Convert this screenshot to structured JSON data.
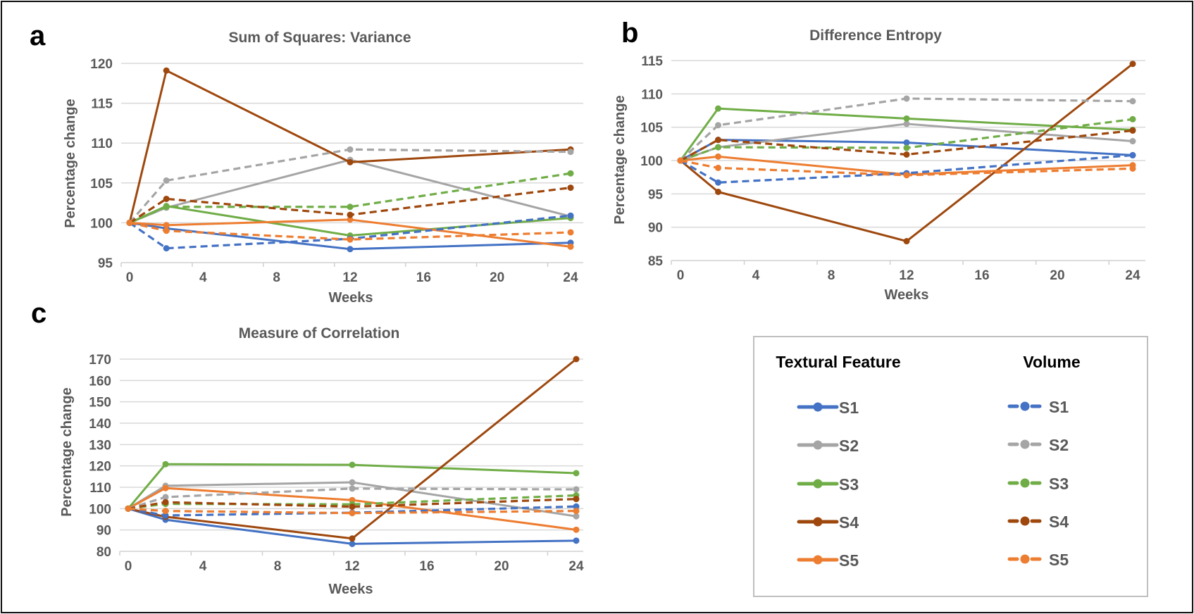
{
  "colors": {
    "S1": "#4472c4",
    "S2": "#a5a5a5",
    "S3": "#70ad47",
    "S4": "#9e480e",
    "S5": "#ed7d31"
  },
  "legend": {
    "textural_header": "Textural Feature",
    "volume_header": "Volume",
    "textural_items": [
      "S1",
      "S2",
      "S3",
      "S4",
      "S5"
    ],
    "volume_items": [
      "S1",
      "S2",
      "S3",
      "S4",
      "S5"
    ]
  },
  "chart_data": [
    {
      "panel": "a",
      "type": "line",
      "title": "Sum of Squares: Variance",
      "xlabel": "Weeks",
      "ylabel": "Percentage change",
      "x": [
        0,
        2,
        12,
        24
      ],
      "xlim": [
        0,
        24
      ],
      "xticks": [
        0,
        4,
        8,
        12,
        16,
        20,
        24
      ],
      "ylim": [
        95,
        120
      ],
      "yticks": [
        95,
        100,
        105,
        110,
        115,
        120
      ],
      "grid": true,
      "series": [
        {
          "name": "Textural Feature S1",
          "key": "S1",
          "style": "solid",
          "values": [
            100,
            99.3,
            96.7,
            97.5
          ]
        },
        {
          "name": "Textural Feature S2",
          "key": "S2",
          "style": "solid",
          "values": [
            100,
            101.9,
            107.9,
            100.8
          ]
        },
        {
          "name": "Textural Feature S3",
          "key": "S3",
          "style": "solid",
          "values": [
            100,
            102.1,
            98.4,
            100.6
          ]
        },
        {
          "name": "Textural Feature S4",
          "key": "S4",
          "style": "solid",
          "values": [
            100,
            119.1,
            107.6,
            109.2
          ]
        },
        {
          "name": "Textural Feature S5",
          "key": "S5",
          "style": "solid",
          "values": [
            100,
            99.7,
            100.4,
            97.0
          ]
        },
        {
          "name": "Volume S1",
          "key": "S1",
          "style": "dashed",
          "values": [
            100,
            96.8,
            98.0,
            100.9
          ]
        },
        {
          "name": "Volume S2",
          "key": "S2",
          "style": "dashed",
          "values": [
            100,
            105.3,
            109.2,
            108.9
          ]
        },
        {
          "name": "Volume S3",
          "key": "S3",
          "style": "dashed",
          "values": [
            100,
            102.0,
            102.0,
            106.2
          ]
        },
        {
          "name": "Volume S4",
          "key": "S4",
          "style": "dashed",
          "values": [
            100,
            103.0,
            101.0,
            104.4
          ]
        },
        {
          "name": "Volume S5",
          "key": "S5",
          "style": "dashed",
          "values": [
            100,
            99.0,
            97.9,
            98.8
          ]
        }
      ]
    },
    {
      "panel": "b",
      "type": "line",
      "title": "Difference Entropy",
      "xlabel": "Weeks",
      "ylabel": "Percentage change",
      "x": [
        0,
        2,
        12,
        24
      ],
      "xlim": [
        0,
        24
      ],
      "xticks": [
        0,
        4,
        8,
        12,
        16,
        20,
        24
      ],
      "ylim": [
        85,
        115
      ],
      "yticks": [
        85,
        90,
        95,
        100,
        105,
        110,
        115
      ],
      "grid": true,
      "series": [
        {
          "name": "Textural Feature S1",
          "key": "S1",
          "style": "solid",
          "values": [
            100,
            103.1,
            102.7,
            100.8
          ]
        },
        {
          "name": "Textural Feature S2",
          "key": "S2",
          "style": "solid",
          "values": [
            100,
            102.0,
            105.5,
            102.9
          ]
        },
        {
          "name": "Textural Feature S3",
          "key": "S3",
          "style": "solid",
          "values": [
            100,
            107.8,
            106.3,
            104.6
          ]
        },
        {
          "name": "Textural Feature S4",
          "key": "S4",
          "style": "solid",
          "values": [
            100,
            95.3,
            87.9,
            114.5
          ]
        },
        {
          "name": "Textural Feature S5",
          "key": "S5",
          "style": "solid",
          "values": [
            100,
            100.6,
            97.9,
            99.3
          ]
        },
        {
          "name": "Volume S1",
          "key": "S1",
          "style": "dashed",
          "values": [
            100,
            96.7,
            98.1,
            100.8
          ]
        },
        {
          "name": "Volume S2",
          "key": "S2",
          "style": "dashed",
          "values": [
            100,
            105.3,
            109.3,
            108.9
          ]
        },
        {
          "name": "Volume S3",
          "key": "S3",
          "style": "dashed",
          "values": [
            100,
            102.0,
            101.9,
            106.2
          ]
        },
        {
          "name": "Volume S4",
          "key": "S4",
          "style": "dashed",
          "values": [
            100,
            103.1,
            100.9,
            104.5
          ]
        },
        {
          "name": "Volume S5",
          "key": "S5",
          "style": "dashed",
          "values": [
            100,
            98.9,
            97.8,
            98.8
          ]
        }
      ]
    },
    {
      "panel": "c",
      "type": "line",
      "title": "Measure of Correlation",
      "xlabel": "Weeks",
      "ylabel": "Percentage change",
      "x": [
        0,
        2,
        12,
        24
      ],
      "xlim": [
        0,
        24
      ],
      "xticks": [
        0,
        4,
        8,
        12,
        16,
        20,
        24
      ],
      "ylim": [
        80,
        170
      ],
      "yticks": [
        80,
        90,
        100,
        110,
        120,
        130,
        140,
        150,
        160,
        170
      ],
      "grid": true,
      "series": [
        {
          "name": "Textural Feature S1",
          "key": "S1",
          "style": "solid",
          "values": [
            100,
            94.8,
            83.5,
            85.0
          ]
        },
        {
          "name": "Textural Feature S2",
          "key": "S2",
          "style": "solid",
          "values": [
            100,
            110.7,
            112.3,
            96.4
          ]
        },
        {
          "name": "Textural Feature S3",
          "key": "S3",
          "style": "solid",
          "values": [
            100,
            120.8,
            120.5,
            116.6
          ]
        },
        {
          "name": "Textural Feature S4",
          "key": "S4",
          "style": "solid",
          "values": [
            100,
            96.2,
            86.0,
            170.0
          ]
        },
        {
          "name": "Textural Feature S5",
          "key": "S5",
          "style": "solid",
          "values": [
            100,
            109.6,
            104.0,
            90.1
          ]
        },
        {
          "name": "Volume S1",
          "key": "S1",
          "style": "dashed",
          "values": [
            100,
            96.8,
            98.1,
            101.0
          ]
        },
        {
          "name": "Volume S2",
          "key": "S2",
          "style": "dashed",
          "values": [
            100,
            105.4,
            109.4,
            109.0
          ]
        },
        {
          "name": "Volume S3",
          "key": "S3",
          "style": "dashed",
          "values": [
            100,
            102.2,
            102.0,
            106.2
          ]
        },
        {
          "name": "Volume S4",
          "key": "S4",
          "style": "dashed",
          "values": [
            100,
            103.0,
            100.9,
            104.5
          ]
        },
        {
          "name": "Volume S5",
          "key": "S5",
          "style": "dashed",
          "values": [
            100,
            98.9,
            97.9,
            98.9
          ]
        }
      ]
    }
  ]
}
